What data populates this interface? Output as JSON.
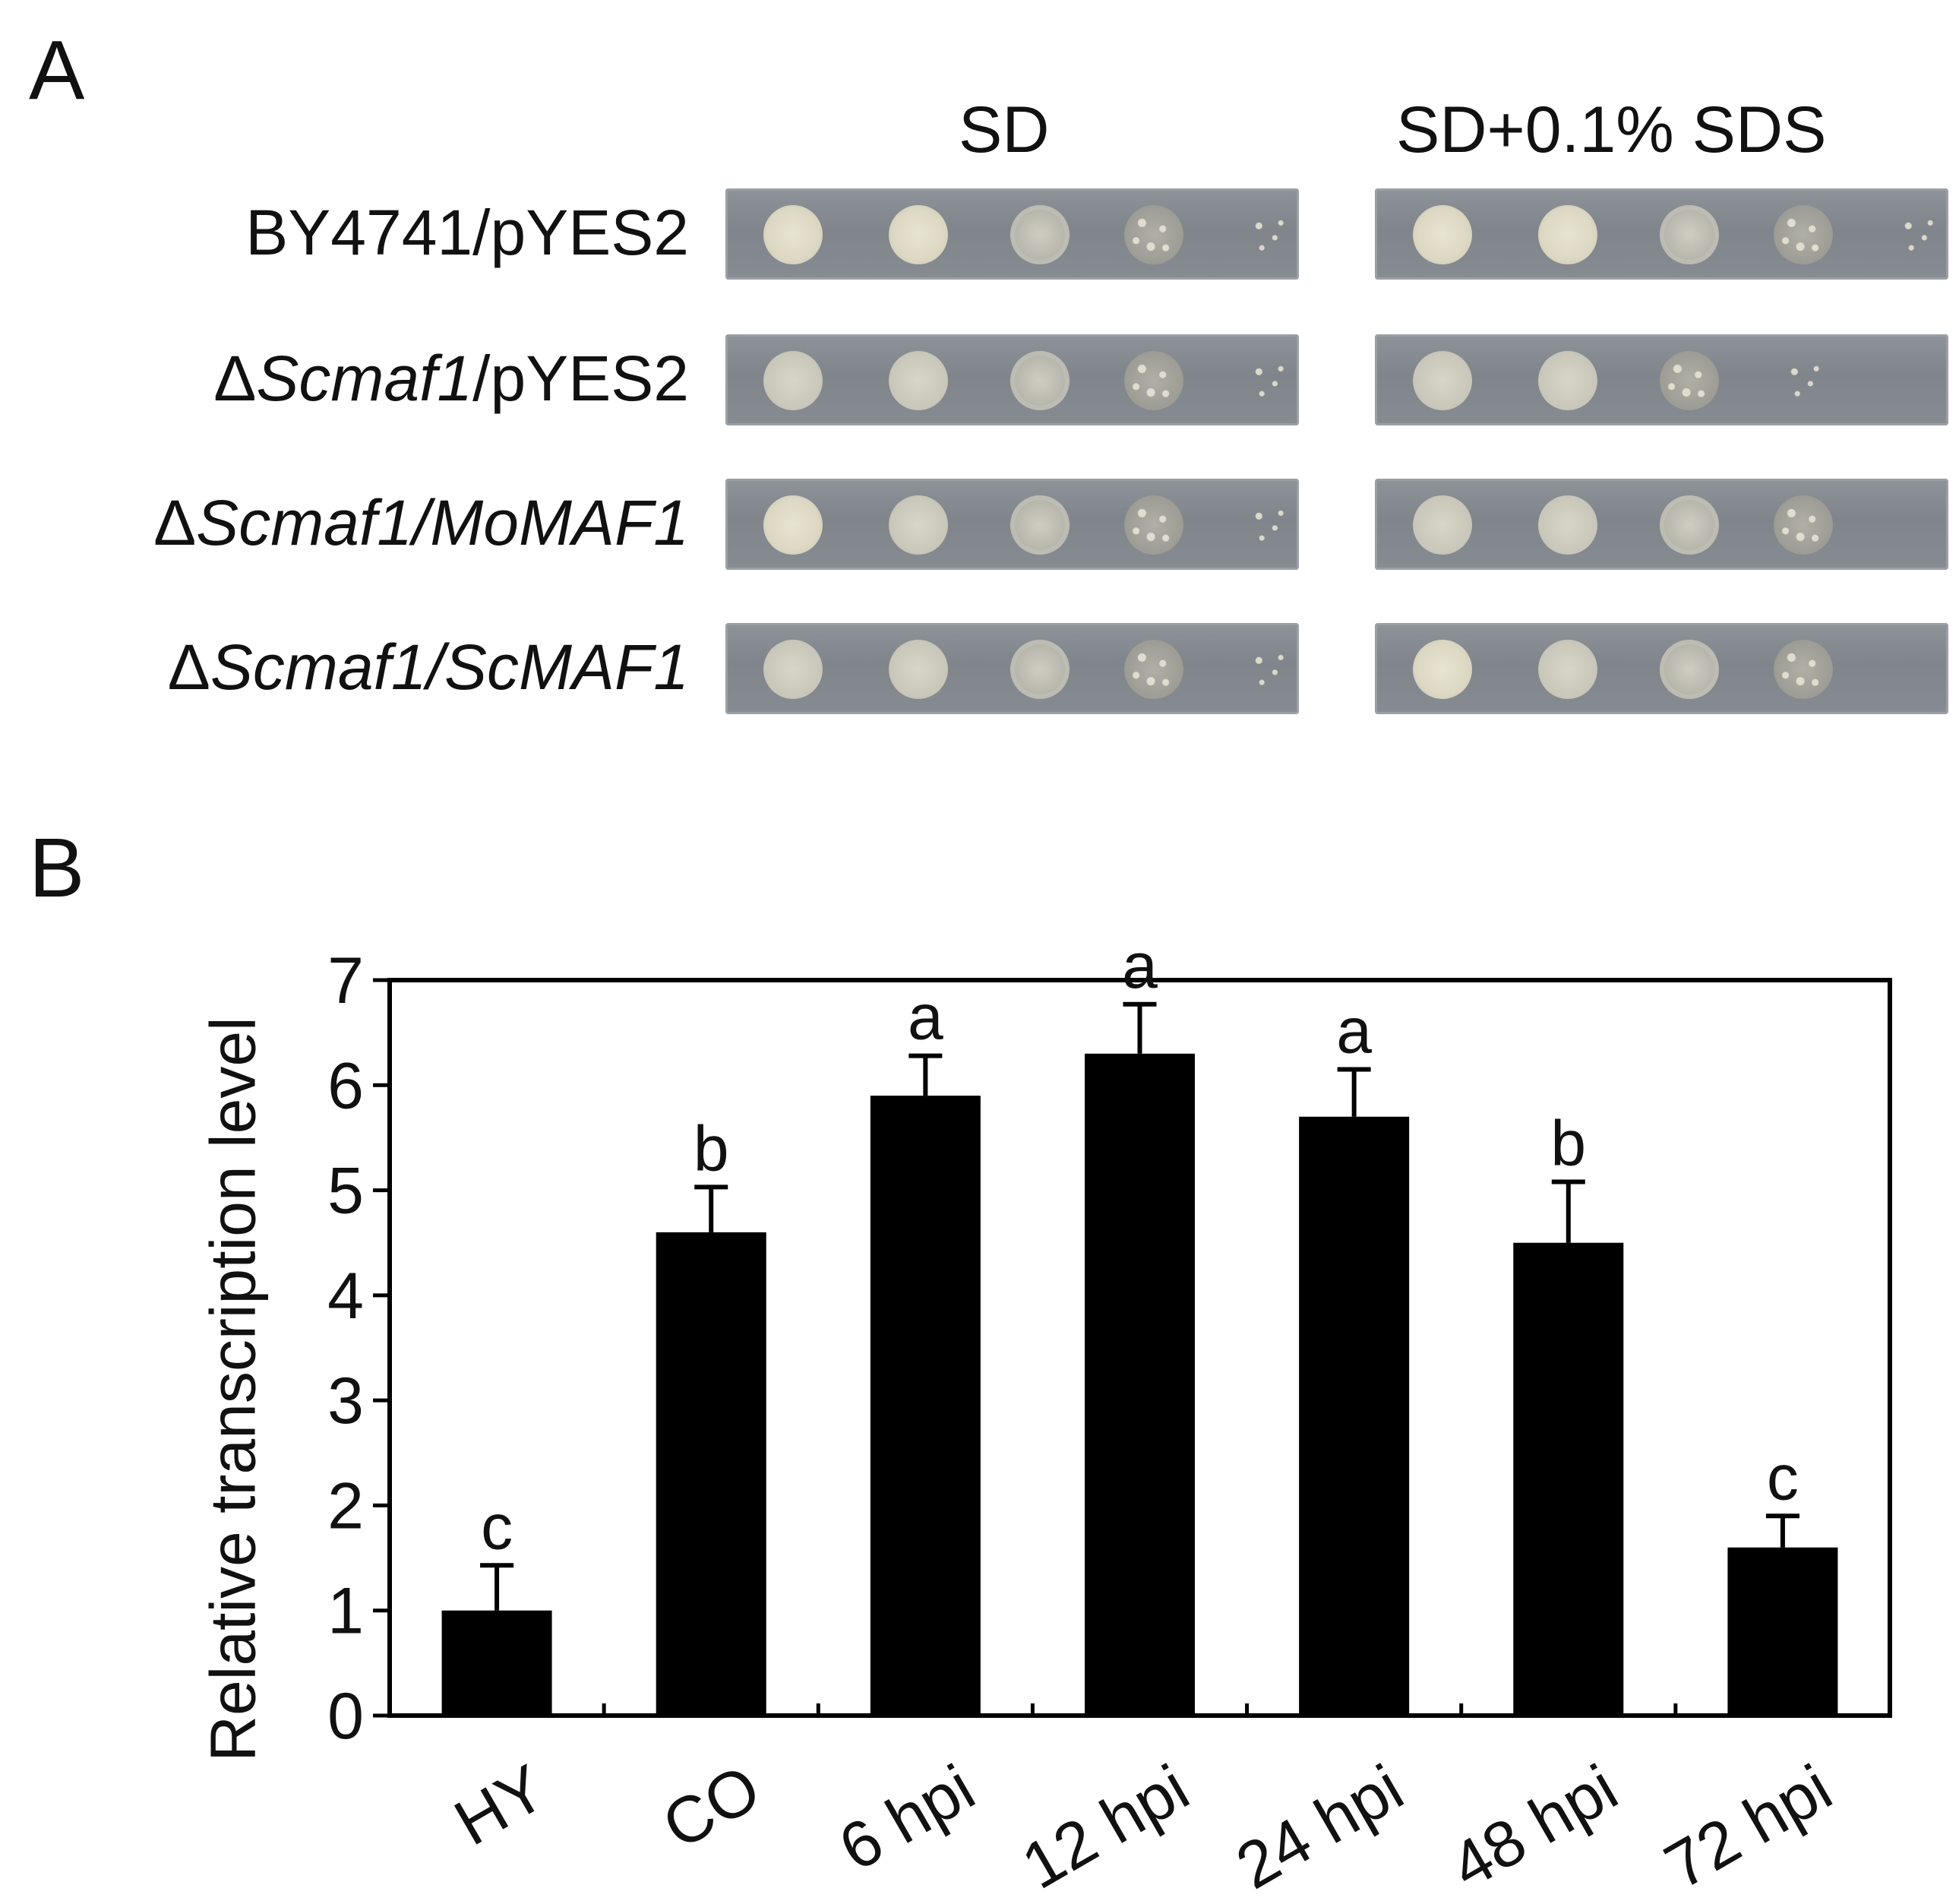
{
  "panel_a": {
    "letter": "A",
    "conditions": [
      "SD",
      "SD+0.1% SDS"
    ],
    "rows": [
      {
        "label_plain": "BY4741/pYES2",
        "parts": [
          {
            "t": "BY4741/pYES2",
            "i": false
          }
        ],
        "growth": [
          [
            0,
            0,
            2,
            3,
            4
          ],
          [
            0,
            0,
            2,
            3,
            4
          ]
        ]
      },
      {
        "label_plain": "ΔScmaf1/pYES2",
        "parts": [
          {
            "t": "Δ",
            "i": false
          },
          {
            "t": "Scmaf1",
            "i": true
          },
          {
            "t": "/pYES2",
            "i": false
          }
        ],
        "growth": [
          [
            1,
            1,
            2,
            3,
            4
          ],
          [
            1,
            1,
            3,
            4,
            5
          ]
        ]
      },
      {
        "label_plain": "ΔScmaf1/MoMAF1",
        "parts": [
          {
            "t": "Δ",
            "i": false
          },
          {
            "t": "Scmaf1/MoMAF1",
            "i": true
          }
        ],
        "growth": [
          [
            0,
            1,
            2,
            3,
            4
          ],
          [
            1,
            1,
            2,
            3,
            5
          ]
        ]
      },
      {
        "label_plain": "ΔScmaf1/ScMAF1",
        "parts": [
          {
            "t": "Δ",
            "i": false
          },
          {
            "t": "Scmaf1/ScMAF1",
            "i": true
          }
        ],
        "growth": [
          [
            1,
            1,
            2,
            3,
            4
          ],
          [
            0,
            1,
            2,
            3,
            5
          ]
        ]
      }
    ],
    "colors": {
      "plate": "#868c92",
      "colony": "#e0ddd0"
    }
  },
  "panel_b": {
    "letter": "B"
  },
  "chart_data": {
    "type": "bar",
    "categories": [
      "HY",
      "CO",
      "6 hpi",
      "12 hpi",
      "24 hpi",
      "48 hpi",
      "72 hpi"
    ],
    "values": [
      1.0,
      4.6,
      5.9,
      6.3,
      5.7,
      4.5,
      1.6
    ],
    "errors": [
      0.43,
      0.43,
      0.38,
      0.47,
      0.45,
      0.58,
      0.3
    ],
    "significance": [
      "c",
      "b",
      "a",
      "a",
      "a",
      "b",
      "c"
    ],
    "title": "",
    "xlabel": "",
    "ylabel": "Relative transcription level",
    "ylim": [
      0,
      7
    ],
    "yticks": [
      0,
      1,
      2,
      3,
      4,
      5,
      6,
      7
    ],
    "grid": false,
    "bar_color": "#000000"
  }
}
